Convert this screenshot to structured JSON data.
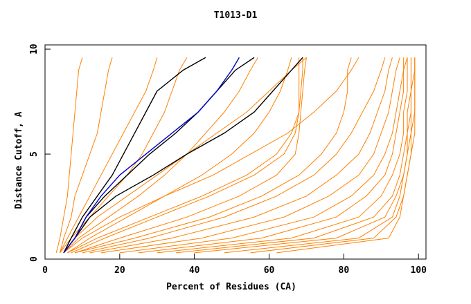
{
  "chart_data": {
    "type": "line",
    "title": "T1013-D1",
    "x_label": "Percent of Residues (CA)",
    "y_label": "Distance Cutoff, A",
    "xlim": [
      0,
      102
    ],
    "ylim": [
      0,
      10.2
    ],
    "xticks": [
      0,
      20,
      40,
      60,
      80,
      100
    ],
    "yticks": [
      0,
      5,
      10
    ],
    "series": [
      {
        "color": "#ff8000",
        "x": [
          3,
          4,
          5,
          6,
          6.5,
          7,
          7.5,
          8,
          8.5,
          9,
          10
        ],
        "values": [
          0.3,
          1,
          2,
          3,
          4,
          5,
          6,
          7,
          8,
          9,
          9.6
        ]
      },
      {
        "color": "#ff8000",
        "x": [
          4,
          5,
          7,
          8,
          10,
          12,
          14,
          15,
          16,
          17,
          18
        ],
        "values": [
          0.3,
          1,
          2,
          3,
          4,
          5,
          6,
          7,
          8,
          9,
          9.6
        ]
      },
      {
        "color": "#ff8000",
        "x": [
          4,
          6,
          9,
          12,
          15,
          18,
          21,
          24,
          27,
          29,
          30
        ],
        "values": [
          0.3,
          1,
          2,
          3,
          4,
          5,
          6,
          7,
          8,
          9,
          9.6
        ]
      },
      {
        "color": "#ff8000",
        "x": [
          4,
          7,
          12,
          17,
          22,
          26,
          29,
          32,
          34,
          36,
          38
        ],
        "values": [
          0.3,
          1,
          2,
          3,
          4,
          5,
          6,
          7,
          8,
          9,
          9.6
        ]
      },
      {
        "color": "#ff8000",
        "x": [
          5,
          9,
          17,
          25,
          32,
          38,
          43,
          48,
          52,
          55,
          57
        ],
        "values": [
          0.3,
          1,
          2,
          3,
          4,
          5,
          6,
          7,
          8,
          9,
          9.6
        ]
      },
      {
        "color": "#ff8000",
        "x": [
          6,
          12,
          22,
          32,
          42,
          50,
          56,
          60,
          63,
          65,
          66
        ],
        "values": [
          0.3,
          1,
          2,
          3,
          4,
          5,
          6,
          7,
          8,
          9,
          9.6
        ]
      },
      {
        "color": "#ff8000",
        "x": [
          7,
          16,
          30,
          44,
          56,
          64,
          67,
          68,
          68.5,
          69,
          69
        ],
        "values": [
          0.3,
          1,
          2,
          3,
          4,
          5,
          6,
          7,
          8,
          9,
          9.6
        ]
      },
      {
        "color": "#ff8000",
        "x": [
          8,
          20,
          38,
          52,
          62,
          67,
          68,
          68.5,
          69,
          69.5,
          70
        ],
        "values": [
          0.3,
          1,
          2,
          3,
          4,
          5,
          6,
          7,
          8,
          9,
          9.6
        ]
      },
      {
        "color": "#ff8000",
        "x": [
          10,
          28,
          48,
          62,
          72,
          78,
          82,
          85,
          88,
          90,
          91
        ],
        "values": [
          0.3,
          1,
          2,
          3,
          4,
          5,
          6,
          7,
          8,
          9,
          9.6
        ]
      },
      {
        "color": "#ff8000",
        "x": [
          12,
          34,
          56,
          70,
          78,
          84,
          87,
          89,
          91,
          92,
          93
        ],
        "values": [
          0.3,
          1,
          2,
          3,
          4,
          5,
          6,
          7,
          8,
          9,
          9.6
        ]
      },
      {
        "color": "#ff8000",
        "x": [
          15,
          42,
          64,
          76,
          84,
          88,
          90,
          92,
          93,
          94,
          95
        ],
        "values": [
          0.3,
          1,
          2,
          3,
          4,
          5,
          6,
          7,
          8,
          9,
          9.6
        ]
      },
      {
        "color": "#ff8000",
        "x": [
          20,
          50,
          72,
          82,
          88,
          91,
          93,
          94,
          95,
          96,
          96
        ],
        "values": [
          0.3,
          1,
          2,
          3,
          4,
          5,
          6,
          7,
          8,
          9,
          9.6
        ]
      },
      {
        "color": "#ff8000",
        "x": [
          25,
          58,
          78,
          86,
          91,
          93,
          94,
          95,
          96,
          96,
          97
        ],
        "values": [
          0.3,
          1,
          2,
          3,
          4,
          5,
          6,
          7,
          8,
          9,
          9.6
        ]
      },
      {
        "color": "#ff8000",
        "x": [
          30,
          66,
          84,
          90,
          93,
          95,
          96,
          96,
          97,
          97,
          97
        ],
        "values": [
          0.3,
          1,
          2,
          3,
          4,
          5,
          6,
          7,
          8,
          9,
          9.6
        ]
      },
      {
        "color": "#ff8000",
        "x": [
          35,
          72,
          88,
          93,
          95,
          96,
          97,
          97,
          98,
          98,
          98
        ],
        "values": [
          0.3,
          1,
          2,
          3,
          4,
          5,
          6,
          7,
          8,
          9,
          9.6
        ]
      },
      {
        "color": "#ff8000",
        "x": [
          40,
          78,
          91,
          94,
          96,
          97,
          97,
          98,
          98,
          98,
          98
        ],
        "values": [
          0.3,
          1,
          2,
          3,
          4,
          5,
          6,
          7,
          8,
          9,
          9.6
        ]
      },
      {
        "color": "#ff8000",
        "x": [
          48,
          84,
          93,
          95,
          96,
          97,
          98,
          98,
          98,
          99,
          99
        ],
        "values": [
          0.3,
          1,
          2,
          3,
          4,
          5,
          6,
          7,
          8,
          9,
          9.6
        ]
      },
      {
        "color": "#ff8000",
        "x": [
          55,
          88,
          94,
          96,
          97,
          98,
          98,
          99,
          99,
          99,
          99
        ],
        "values": [
          0.3,
          1,
          2,
          3,
          4,
          5,
          6,
          7,
          8,
          9,
          9.6
        ]
      },
      {
        "color": "#ff8000",
        "x": [
          62,
          92,
          95,
          96,
          97,
          98,
          99,
          99,
          99,
          99,
          99
        ],
        "values": [
          0.3,
          1,
          2,
          3,
          4,
          5,
          6,
          7,
          8,
          9,
          9.6
        ]
      },
      {
        "color": "#ff8000",
        "x": [
          5,
          10,
          20,
          32,
          45,
          55,
          65,
          72,
          78,
          82,
          84
        ],
        "values": [
          0.3,
          1,
          2,
          3,
          4,
          5,
          6,
          7,
          8,
          9,
          9.6
        ]
      },
      {
        "color": "#ff8000",
        "x": [
          5,
          8,
          14,
          22,
          30,
          38,
          46,
          54,
          60,
          66,
          70
        ],
        "values": [
          0.3,
          1,
          2,
          3,
          4,
          5,
          6,
          7,
          8,
          9,
          9.6
        ]
      },
      {
        "color": "#ff8000",
        "x": [
          6,
          14,
          28,
          42,
          54,
          62,
          66,
          68,
          68,
          68,
          68
        ],
        "values": [
          0.3,
          1,
          2,
          3,
          4,
          5,
          6,
          7,
          8,
          9,
          9.6
        ]
      },
      {
        "color": "#ff8000",
        "x": [
          8,
          24,
          44,
          58,
          68,
          74,
          78,
          80,
          81,
          81,
          82
        ],
        "values": [
          0.3,
          1,
          2,
          3,
          4,
          5,
          6,
          7,
          8,
          9,
          9.6
        ]
      },
      {
        "color": "#000000",
        "x": [
          5,
          7,
          10,
          14,
          18,
          21,
          24,
          27,
          30,
          37,
          43
        ],
        "values": [
          0.3,
          1,
          2,
          3,
          4,
          5,
          6,
          7,
          8,
          9,
          9.6
        ]
      },
      {
        "color": "#000000",
        "x": [
          5,
          8,
          11,
          16,
          22,
          28,
          35,
          41,
          46,
          51,
          56
        ],
        "values": [
          0.3,
          1,
          2,
          3,
          4,
          5,
          6,
          7,
          8,
          9,
          9.6
        ]
      },
      {
        "color": "#000000",
        "x": [
          5,
          8,
          12,
          19,
          29,
          38,
          48,
          56,
          61,
          66,
          69
        ],
        "values": [
          0.3,
          1,
          2,
          3,
          4,
          5,
          6,
          7,
          8,
          9,
          9.6
        ]
      },
      {
        "color": "#0000cc",
        "x": [
          5,
          8,
          11,
          15,
          20,
          27,
          34,
          41,
          46,
          50,
          52
        ],
        "values": [
          0.3,
          1,
          2,
          3,
          4,
          5,
          6,
          7,
          8,
          9,
          9.6
        ]
      }
    ]
  }
}
